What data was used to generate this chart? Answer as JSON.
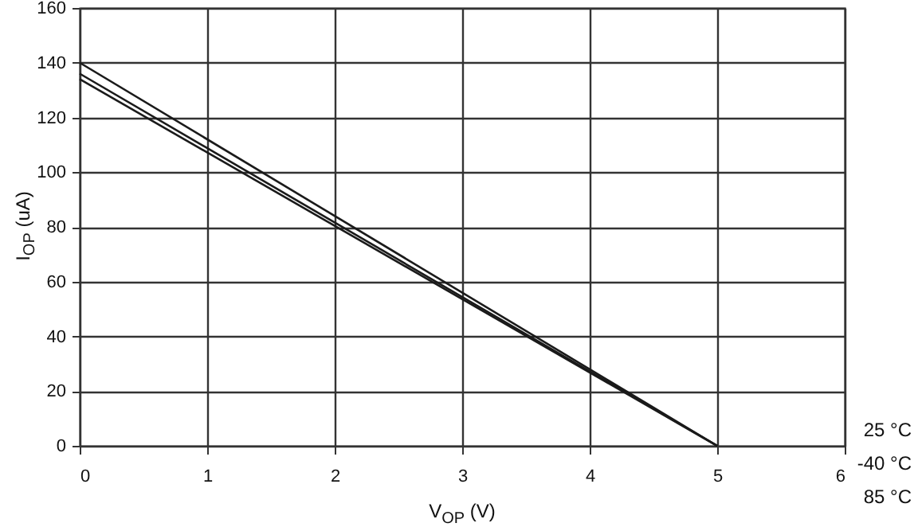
{
  "chart_data": {
    "type": "line",
    "xlabel": "V$_{OP}$ (V)",
    "ylabel": "I$_{OP}$ (uA)",
    "xlim": [
      0,
      6
    ],
    "xticks": [
      0,
      1,
      2,
      3,
      4,
      5,
      6
    ],
    "ylim": [
      0,
      160
    ],
    "yticks": [
      0,
      20,
      40,
      60,
      80,
      100,
      120,
      140,
      160
    ],
    "grid": true,
    "x": [
      0,
      5
    ],
    "marker": "none",
    "line_style": "solid",
    "series": [
      {
        "color": "#1a1a1a",
        "values": [
          140,
          0
        ]
      },
      {
        "color": "#1a1a1a",
        "values": [
          136,
          0
        ]
      },
      {
        "color": "#1a1a1a",
        "values": [
          134,
          0
        ]
      }
    ],
    "annotations": [
      "25 °C",
      "-40 °C",
      "85 °C"
    ]
  }
}
